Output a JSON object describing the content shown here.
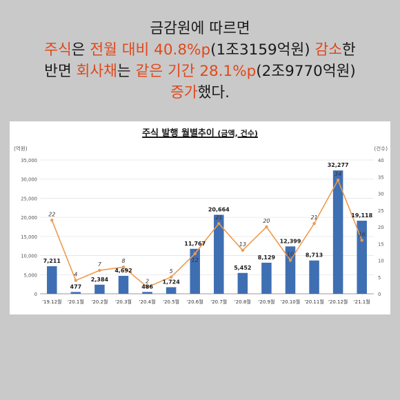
{
  "headline": {
    "line1": "금감원에 따르면",
    "line2_a": "주식",
    "line2_b": "은 ",
    "line2_c": "전월 대비 40.8%p",
    "line2_d": "(1조3159억원) ",
    "line2_e": "감소",
    "line2_f": "한",
    "line3_a": "반면 ",
    "line3_b": "회사채",
    "line3_c": "는 ",
    "line3_d": "같은 기간 28.1%p",
    "line3_e": "(2조9770억원)",
    "line4_a": "증가",
    "line4_b": "했다."
  },
  "colors": {
    "background": "#c9c9c9",
    "highlight": "#e0481c",
    "bar": "#3f6fb3",
    "line": "#ee9a4d",
    "axis_text": "#555555"
  },
  "chart_data": {
    "type": "bar",
    "title": "주식 발행 월별추이",
    "subtitle": "(금액, 건수)",
    "y_left_unit": "(억원)",
    "y_right_unit": "(건수)",
    "categories": [
      "'19.12월",
      "'20.1월",
      "'20.2월",
      "'20.3월",
      "'20.4월",
      "'20.5월",
      "'20.6월",
      "'20.7월",
      "'20.8월",
      "'20.9월",
      "'20.10월",
      "'20.11월",
      "'20.12월",
      "'21.1월"
    ],
    "series": [
      {
        "type": "bar",
        "axis": "left",
        "values": [
          7211,
          477,
          2384,
          4692,
          486,
          1724,
          11767,
          20664,
          5452,
          8129,
          12399,
          8713,
          32277,
          19118
        ],
        "labels": [
          "7,211",
          "477",
          "2,384",
          "4,692",
          "486",
          "1,724",
          "11,767",
          "20,664",
          "5,452",
          "8,129",
          "12,399",
          "8,713",
          "32,277",
          "19,118"
        ]
      },
      {
        "type": "line",
        "axis": "right",
        "values": [
          22,
          4,
          7,
          8,
          2,
          5,
          12,
          21,
          13,
          20,
          10,
          21,
          34,
          16
        ],
        "labels": [
          "22",
          "4",
          "7",
          "8",
          "2",
          "5",
          "12",
          "21",
          "13",
          "20",
          "10",
          "21",
          "34",
          "16"
        ]
      }
    ],
    "y_left_ticks": [
      "35,000",
      "30,000",
      "25,000",
      "20,000",
      "15,000",
      "10,000",
      "5,000",
      "0"
    ],
    "y_right_ticks": [
      "40",
      "35",
      "30",
      "25",
      "20",
      "15",
      "10",
      "5",
      "0"
    ],
    "ylim_left": [
      0,
      35000
    ],
    "ylim_right": [
      0,
      40
    ],
    "grid": true,
    "legend": "none"
  }
}
